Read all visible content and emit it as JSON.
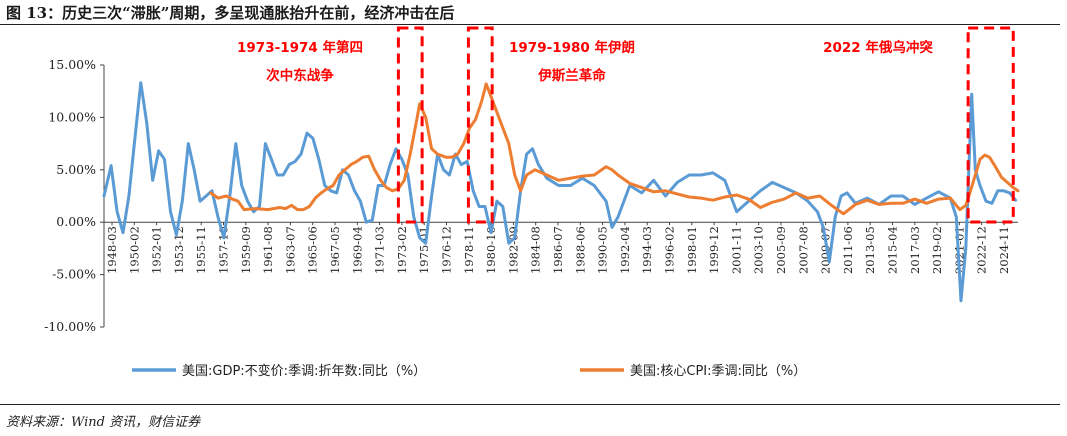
{
  "figure_title": "图 13：历史三次“滞胀”周期，多呈现通胀抬升在前，经济冲击在后",
  "source": "资料来源：Wind 资讯，财信证券",
  "chart_data": {
    "type": "line",
    "title": "",
    "ylim": [
      -10,
      15
    ],
    "y_ticks": [
      "-10.00%",
      "-5.00%",
      "0.00%",
      "5.00%",
      "10.00%",
      "15.00%"
    ],
    "x_ticks": [
      "1948-03",
      "1950-02",
      "1952-01",
      "1953-12",
      "1955-11",
      "1957-10",
      "1959-09",
      "1961-08",
      "1963-07",
      "1965-06",
      "1967-05",
      "1969-04",
      "1971-03",
      "1973-02",
      "1975-01",
      "1976-12",
      "1978-11",
      "1980-10",
      "1982-09",
      "1984-08",
      "1986-07",
      "1988-06",
      "1990-05",
      "1992-04",
      "1994-03",
      "1996-02",
      "1998-01",
      "1999-12",
      "2001-11",
      "2003-10",
      "2005-09",
      "2007-08",
      "2009-07",
      "2011-06",
      "2013-05",
      "2015-04",
      "2017-03",
      "2019-02",
      "2021-01",
      "2022-12",
      "2024-11"
    ],
    "legend_position": "bottom",
    "grid": false,
    "series": [
      {
        "name": "美国:GDP:不变价:季调:折年数:同比（%）",
        "color": "#5b9bd5",
        "x": [
          1948.2,
          1948.8,
          1949.3,
          1949.8,
          1950.3,
          1950.8,
          1951.3,
          1951.8,
          1952.3,
          1952.8,
          1953.3,
          1953.8,
          1954.3,
          1954.8,
          1955.3,
          1955.8,
          1956.3,
          1956.8,
          1957.3,
          1957.8,
          1958.3,
          1958.8,
          1959.3,
          1959.8,
          1960.3,
          1960.8,
          1961.3,
          1961.8,
          1962.3,
          1962.8,
          1963.3,
          1963.8,
          1964.3,
          1964.8,
          1965.3,
          1965.8,
          1966.3,
          1966.8,
          1967.3,
          1967.8,
          1968.3,
          1968.8,
          1969.3,
          1969.8,
          1970.3,
          1970.8,
          1971.3,
          1971.8,
          1972.3,
          1972.8,
          1973.3,
          1973.8,
          1974.3,
          1974.8,
          1975.3,
          1975.8,
          1976.3,
          1976.8,
          1977.3,
          1977.8,
          1978.3,
          1978.8,
          1979.3,
          1979.8,
          1980.3,
          1980.8,
          1981.3,
          1981.8,
          1982.3,
          1982.8,
          1983.3,
          1983.8,
          1984.3,
          1984.8,
          1985.5,
          1986.5,
          1987.5,
          1988.5,
          1989.5,
          1990.5,
          1991.0,
          1991.5,
          1992.5,
          1993.5,
          1994.5,
          1995.5,
          1996.5,
          1997.5,
          1998.5,
          1999.5,
          2000.5,
          2001.0,
          2001.5,
          2002.0,
          2002.5,
          2003.5,
          2004.5,
          2005.5,
          2006.5,
          2007.5,
          2008.3,
          2008.8,
          2009.3,
          2009.8,
          2010.3,
          2010.8,
          2011.5,
          2012.5,
          2013.5,
          2014.5,
          2015.5,
          2016.5,
          2017.5,
          2018.5,
          2019.5,
          2020.0,
          2020.4,
          2020.8,
          2021.3,
          2021.6,
          2022.0,
          2022.5,
          2023.0,
          2023.5,
          2024.0,
          2024.5,
          2025.0
        ],
        "values": [
          2.5,
          5.4,
          1.0,
          -1.0,
          2.5,
          8.0,
          13.3,
          9.5,
          4.0,
          6.8,
          6.0,
          1.0,
          -1.2,
          2.0,
          7.5,
          5.0,
          2.0,
          2.5,
          3.0,
          0.5,
          -1.5,
          2.5,
          7.5,
          3.5,
          2.0,
          1.0,
          1.5,
          7.5,
          6.0,
          4.5,
          4.5,
          5.5,
          5.8,
          6.5,
          8.5,
          8.0,
          6.0,
          3.5,
          3.0,
          2.8,
          5.0,
          4.5,
          3.0,
          2.0,
          0.0,
          0.2,
          3.5,
          3.5,
          5.5,
          7.0,
          6.0,
          4.5,
          0.5,
          -1.5,
          -2.0,
          2.5,
          6.5,
          5.0,
          4.5,
          6.5,
          5.5,
          5.8,
          3.0,
          1.5,
          1.5,
          -1.0,
          2.0,
          1.5,
          -2.0,
          -1.5,
          3.0,
          6.5,
          7.0,
          5.5,
          4.2,
          3.5,
          3.5,
          4.2,
          3.5,
          2.0,
          -0.5,
          0.5,
          3.5,
          2.8,
          4.0,
          2.5,
          3.8,
          4.5,
          4.5,
          4.7,
          4.0,
          2.5,
          1.0,
          1.5,
          2.0,
          3.0,
          3.8,
          3.3,
          2.8,
          2.0,
          1.0,
          -0.5,
          -3.8,
          0.5,
          2.5,
          2.8,
          1.8,
          2.3,
          1.7,
          2.5,
          2.5,
          1.7,
          2.3,
          2.9,
          2.3,
          0.5,
          -7.5,
          -2.5,
          12.2,
          5.0,
          3.5,
          2.0,
          1.8,
          3.0,
          3.0,
          2.8,
          2.1
        ]
      },
      {
        "name": "美国:核心CPI:季调:同比（%）",
        "color": "#ed7d31",
        "x": [
          1957.2,
          1957.8,
          1958.5,
          1959.0,
          1959.5,
          1960.0,
          1961.0,
          1962.0,
          1963.0,
          1963.5,
          1964.0,
          1964.5,
          1965.0,
          1965.5,
          1966.0,
          1966.5,
          1967.0,
          1967.5,
          1968.0,
          1968.5,
          1969.0,
          1969.5,
          1970.0,
          1970.5,
          1971.0,
          1971.5,
          1972.0,
          1972.5,
          1973.0,
          1973.5,
          1974.0,
          1974.5,
          1974.8,
          1975.3,
          1975.8,
          1976.3,
          1977.0,
          1977.5,
          1978.0,
          1978.5,
          1979.0,
          1979.5,
          1980.0,
          1980.4,
          1980.8,
          1981.3,
          1981.8,
          1982.3,
          1982.8,
          1983.3,
          1983.8,
          1984.5,
          1985.5,
          1986.5,
          1987.5,
          1988.5,
          1989.5,
          1990.5,
          1991.0,
          1991.5,
          1992.5,
          1993.5,
          1994.5,
          1995.5,
          1996.5,
          1997.5,
          1998.5,
          1999.5,
          2000.5,
          2001.5,
          2002.5,
          2003.5,
          2004.5,
          2005.5,
          2006.5,
          2007.5,
          2008.5,
          2009.5,
          2010.5,
          2011.5,
          2012.5,
          2013.5,
          2014.5,
          2015.5,
          2016.5,
          2017.5,
          2018.5,
          2019.5,
          2020.3,
          2020.8,
          2021.2,
          2021.6,
          2022.0,
          2022.4,
          2022.8,
          2023.3,
          2023.8,
          2024.3,
          2024.8,
          2025.2
        ],
        "values": [
          2.8,
          2.3,
          2.5,
          2.2,
          2.0,
          1.2,
          1.3,
          1.2,
          1.4,
          1.3,
          1.6,
          1.2,
          1.2,
          1.5,
          2.3,
          2.8,
          3.2,
          3.5,
          4.5,
          5.0,
          5.5,
          5.8,
          6.2,
          6.3,
          5.0,
          4.0,
          3.3,
          3.0,
          3.2,
          4.0,
          6.5,
          9.5,
          11.3,
          10.0,
          7.0,
          6.5,
          6.2,
          6.2,
          6.5,
          7.5,
          9.0,
          9.8,
          11.5,
          13.2,
          12.0,
          10.5,
          9.0,
          7.5,
          4.5,
          3.0,
          4.5,
          5.0,
          4.5,
          4.0,
          4.2,
          4.4,
          4.5,
          5.3,
          5.0,
          4.5,
          3.7,
          3.3,
          2.9,
          3.0,
          2.7,
          2.4,
          2.3,
          2.1,
          2.4,
          2.6,
          2.2,
          1.4,
          1.9,
          2.2,
          2.8,
          2.3,
          2.5,
          1.6,
          0.8,
          1.7,
          2.1,
          1.7,
          1.8,
          1.8,
          2.2,
          1.8,
          2.2,
          2.3,
          1.2,
          1.6,
          3.0,
          4.5,
          6.0,
          6.4,
          6.2,
          5.3,
          4.3,
          3.8,
          3.3,
          3.0
        ]
      }
    ],
    "annotations": [
      {
        "lines": [
          "1973-1974 年第四",
          "次中东战争"
        ],
        "span": [
          1973.0,
          1975.0
        ]
      },
      {
        "lines": [
          "1979-1980 年伊朗",
          "伊斯兰革命"
        ],
        "span": [
          1978.9,
          1980.9
        ]
      },
      {
        "lines": [
          "2022 年俄乌冲突"
        ],
        "span": [
          2021.0,
          2024.8
        ]
      }
    ]
  }
}
